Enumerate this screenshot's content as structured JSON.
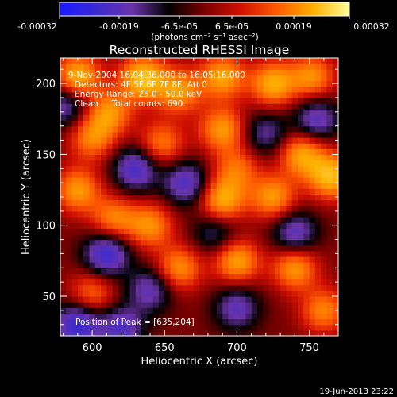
{
  "colorbar": {
    "ticks": [
      "-0.00032",
      "-0.00019",
      "-6.5e-05",
      "6.5e-05",
      "0.00019",
      "0.00032"
    ],
    "unit_label": "(photons cm⁻² s⁻¹ asec⁻²)",
    "colormap": [
      "#1a1aff",
      "#3a2ad0",
      "#6a34a8",
      "#000000",
      "#7a0000",
      "#d01000",
      "#ff5a00",
      "#ffb000",
      "#ffff9a"
    ]
  },
  "chart_data": {
    "type": "heatmap",
    "title": "Reconstructed RHESSI Image",
    "xlabel": "Heliocentric X (arcsec)",
    "ylabel": "Heliocentric Y (arcsec)",
    "xlim": [
      578,
      770
    ],
    "ylim": [
      22,
      218
    ],
    "x_ticks": [
      600,
      650,
      700,
      750
    ],
    "y_ticks": [
      50,
      100,
      150,
      200
    ],
    "zlim": [
      -0.00032,
      0.00032
    ],
    "annotations": [
      "9-Nov-2004 16:04:36.000 to 16:05:16.000",
      "Detectors: 4F 5F 6F 7F 8F, Att 0",
      "Energy Range: 25.0 - 50.0 keV",
      "Clean     Total counts: 690."
    ],
    "peak_label": "Position of Peak = [635,204]",
    "peak": [
      635,
      204
    ],
    "blobs": [
      {
        "x": 590,
        "y": 205,
        "amp": 0.9
      },
      {
        "x": 612,
        "y": 180,
        "amp": 0.7
      },
      {
        "x": 635,
        "y": 204,
        "amp": 1.0
      },
      {
        "x": 660,
        "y": 195,
        "amp": 0.75
      },
      {
        "x": 690,
        "y": 205,
        "amp": 0.8
      },
      {
        "x": 725,
        "y": 200,
        "amp": 0.85
      },
      {
        "x": 752,
        "y": 205,
        "amp": 0.7
      },
      {
        "x": 600,
        "y": 162,
        "amp": 0.65
      },
      {
        "x": 648,
        "y": 158,
        "amp": 0.6
      },
      {
        "x": 690,
        "y": 168,
        "amp": 0.75
      },
      {
        "x": 745,
        "y": 150,
        "amp": 0.8
      },
      {
        "x": 765,
        "y": 135,
        "amp": 0.95
      },
      {
        "x": 700,
        "y": 140,
        "amp": 0.55
      },
      {
        "x": 590,
        "y": 125,
        "amp": 0.75
      },
      {
        "x": 640,
        "y": 100,
        "amp": 0.7
      },
      {
        "x": 615,
        "y": 105,
        "amp": 0.65
      },
      {
        "x": 690,
        "y": 118,
        "amp": 0.85
      },
      {
        "x": 725,
        "y": 120,
        "amp": 0.75
      },
      {
        "x": 660,
        "y": 70,
        "amp": 0.7
      },
      {
        "x": 700,
        "y": 75,
        "amp": 0.8
      },
      {
        "x": 740,
        "y": 70,
        "amp": 0.75
      },
      {
        "x": 600,
        "y": 52,
        "amp": 0.55
      },
      {
        "x": 760,
        "y": 40,
        "amp": 0.65
      },
      {
        "x": 582,
        "y": 185,
        "amp": -0.6
      },
      {
        "x": 630,
        "y": 140,
        "amp": -0.75
      },
      {
        "x": 665,
        "y": 130,
        "amp": -0.7
      },
      {
        "x": 720,
        "y": 165,
        "amp": -0.5
      },
      {
        "x": 755,
        "y": 175,
        "amp": -0.65
      },
      {
        "x": 610,
        "y": 80,
        "amp": -0.85
      },
      {
        "x": 640,
        "y": 55,
        "amp": -0.6
      },
      {
        "x": 590,
        "y": 30,
        "amp": -0.9
      },
      {
        "x": 620,
        "y": 28,
        "amp": -0.7
      },
      {
        "x": 700,
        "y": 42,
        "amp": -0.6
      },
      {
        "x": 740,
        "y": 95,
        "amp": -0.65
      },
      {
        "x": 685,
        "y": 95,
        "amp": -0.45
      }
    ],
    "blob_width": 11
  },
  "footer": {
    "date": "19-Jun-2013 23:22"
  }
}
